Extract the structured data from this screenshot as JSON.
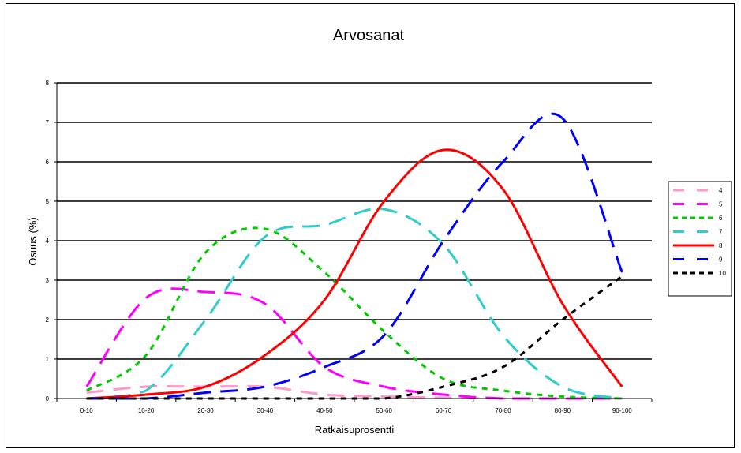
{
  "chart_data": {
    "type": "line",
    "title": "Arvosanat",
    "xlabel": "Ratkaisuprosentti",
    "ylabel": "Osuus (%)",
    "ylim": [
      0,
      8
    ],
    "yticks": [
      "0",
      "1",
      "2",
      "3",
      "4",
      "5",
      "6",
      "7",
      "8"
    ],
    "grid": true,
    "legend_position": "right",
    "categories": [
      "0-10",
      "10-20",
      "20-30",
      "30-40",
      "40-50",
      "50-60",
      "60-70",
      "70-80",
      "80-90",
      "90-100"
    ],
    "series": [
      {
        "name": "4",
        "color": "#ff99cc",
        "dash": "long",
        "values": [
          0.15,
          0.3,
          0.3,
          0.3,
          0.1,
          0.05,
          0.02,
          0.0,
          0.0,
          0.0
        ]
      },
      {
        "name": "5",
        "color": "#ff00ff",
        "dash": "long",
        "values": [
          0.3,
          2.55,
          2.7,
          2.4,
          0.8,
          0.3,
          0.1,
          0.0,
          0.0,
          0.0
        ]
      },
      {
        "name": "6",
        "color": "#00cc00",
        "dash": "short",
        "values": [
          0.2,
          1.1,
          3.7,
          4.3,
          3.2,
          1.7,
          0.5,
          0.2,
          0.05,
          0.0
        ]
      },
      {
        "name": "7",
        "color": "#33cccc",
        "dash": "long",
        "values": [
          0.0,
          0.2,
          2.0,
          4.1,
          4.4,
          4.8,
          3.9,
          1.6,
          0.3,
          0.0
        ]
      },
      {
        "name": "8",
        "color": "#ff0000",
        "dash": "solid",
        "values": [
          0.0,
          0.1,
          0.3,
          1.1,
          2.5,
          5.0,
          6.3,
          5.3,
          2.4,
          0.3
        ]
      },
      {
        "name": "9",
        "color": "#0000ff",
        "dash": "long",
        "values": [
          0.0,
          0.0,
          0.15,
          0.3,
          0.8,
          1.6,
          4.0,
          6.0,
          7.1,
          3.2
        ]
      },
      {
        "name": "10",
        "color": "#000000",
        "dash": "short",
        "values": [
          0.0,
          0.0,
          0.0,
          0.0,
          0.0,
          0.0,
          0.3,
          0.8,
          2.0,
          3.1
        ]
      }
    ]
  }
}
